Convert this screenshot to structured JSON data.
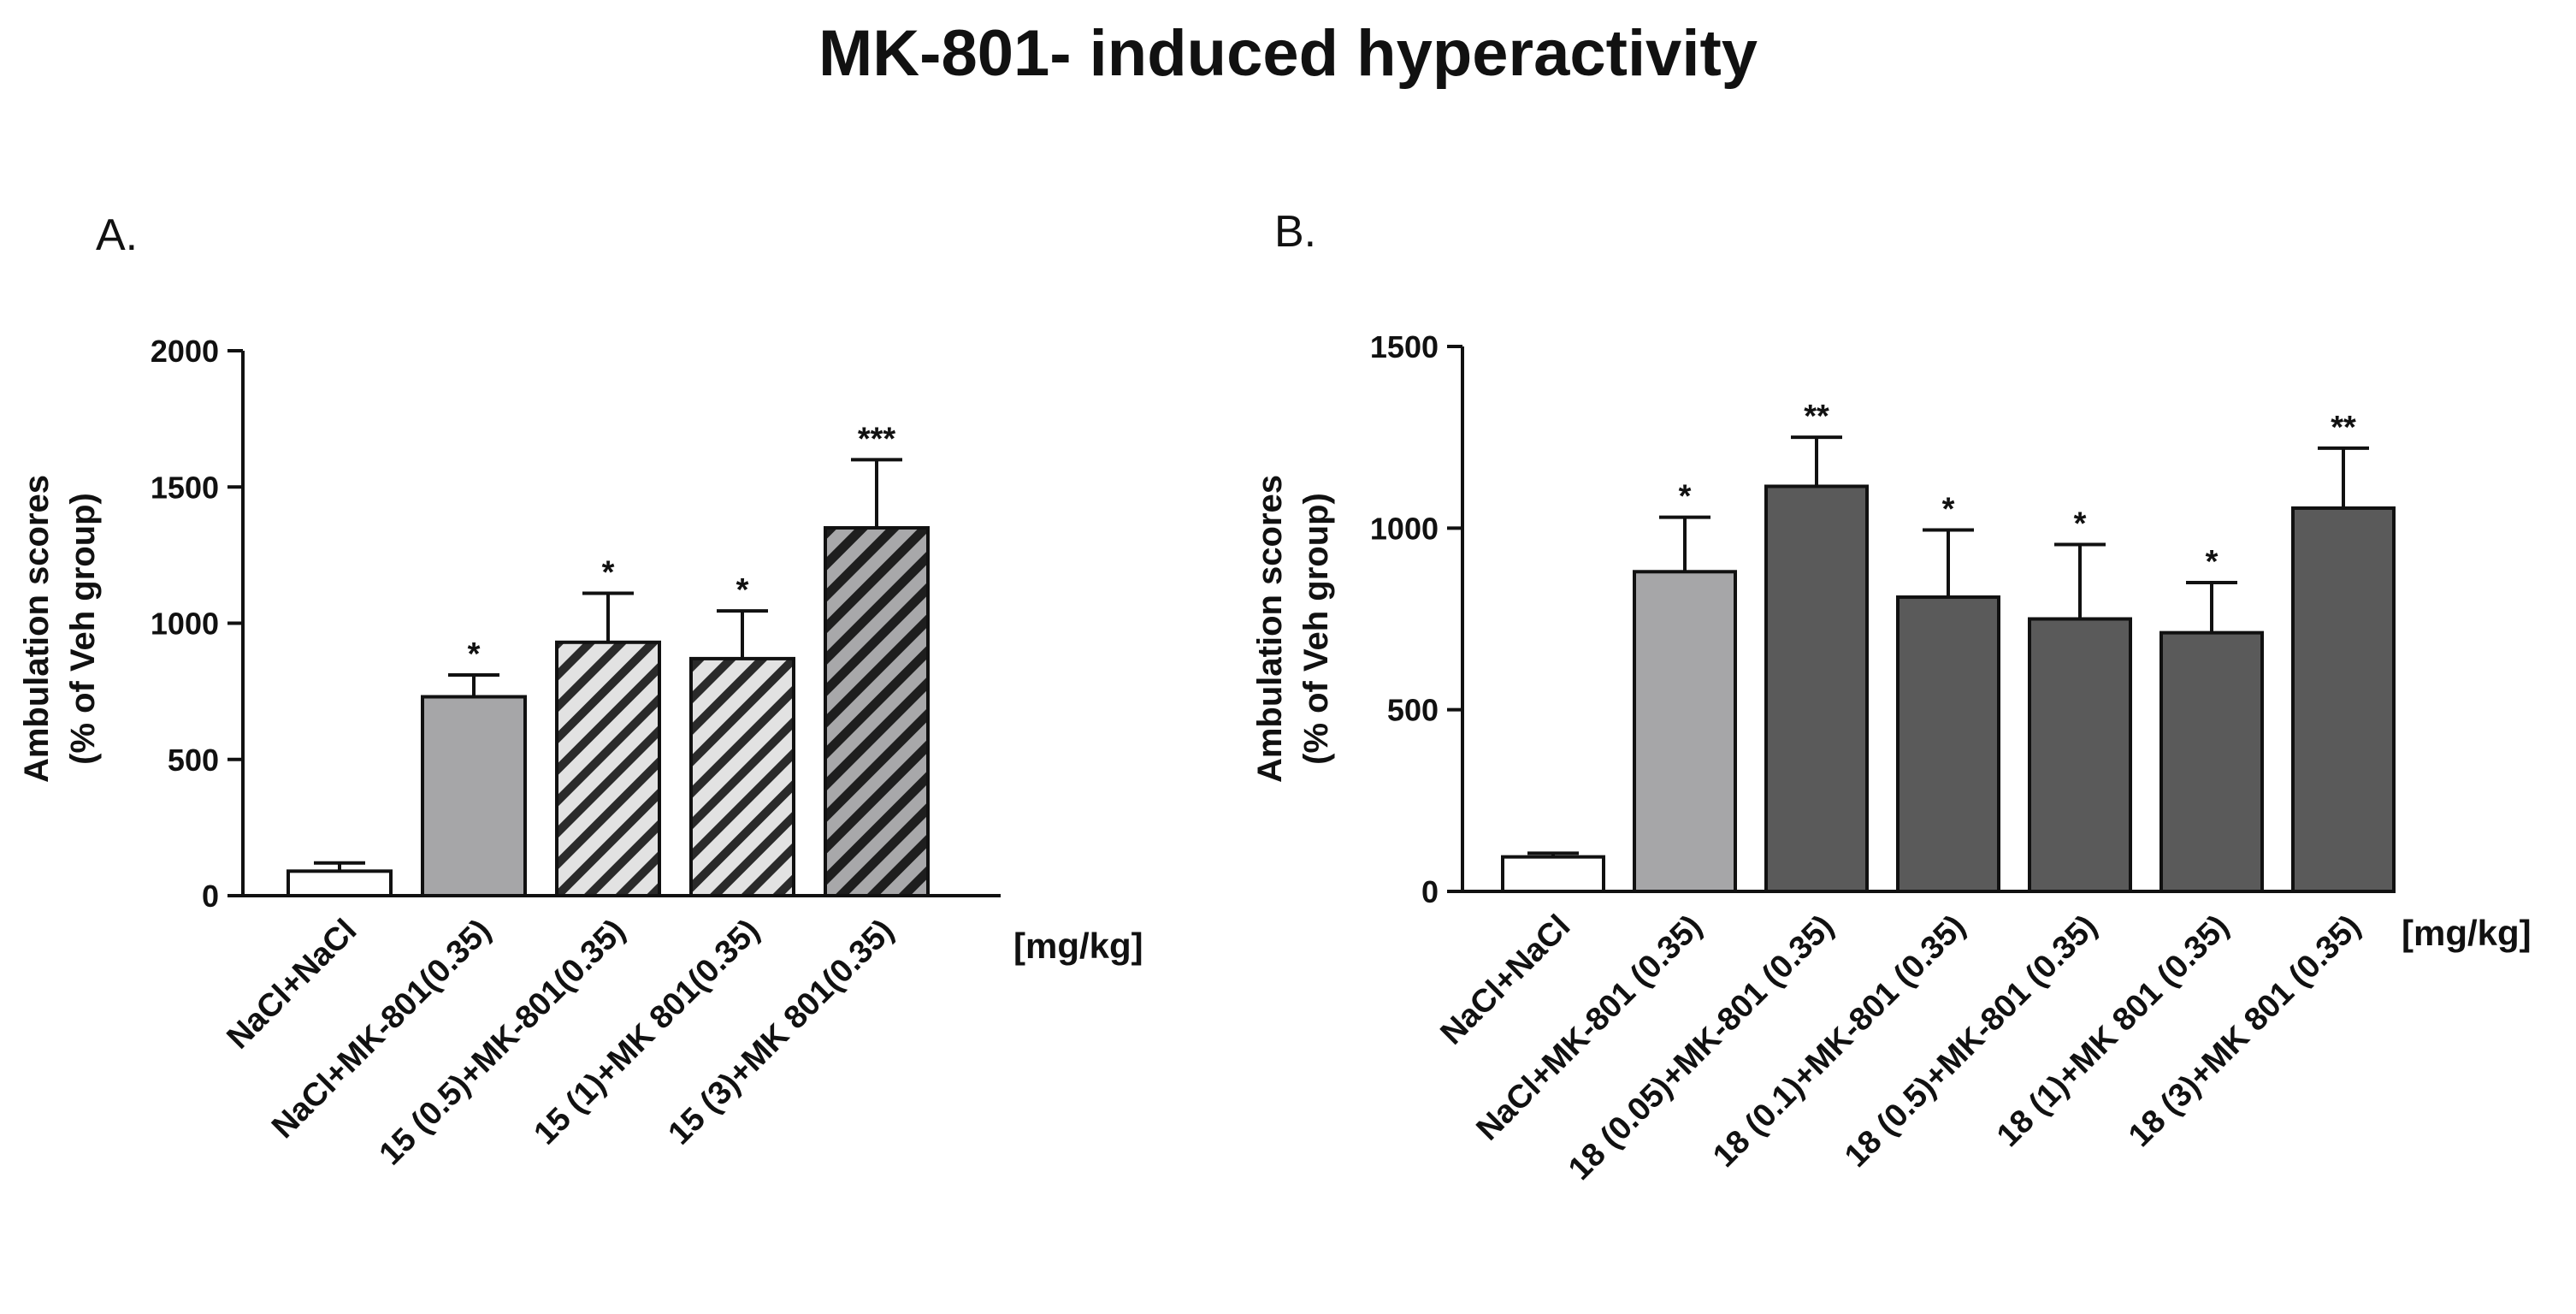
{
  "figure_title": "MK-801- induced hyperactivity",
  "unit_label": "[mg/kg]",
  "colors": {
    "white_bar": "#ffffff",
    "light_grey_bar": "#a6a6a8",
    "dark_grey_bar": "#5a5a5a",
    "hatch_light_bg": "#e2e2e2",
    "hatch_dark_bg": "#a8a8aa",
    "ink": "#111111"
  },
  "chart_data": [
    {
      "panel": "A.",
      "type": "bar",
      "ylabel_line1": "Ambulation scores",
      "ylabel_line2": "(% of Veh group)",
      "ylim": [
        0,
        2000
      ],
      "yticks": [
        0,
        500,
        1000,
        1500,
        2000
      ],
      "categories": [
        "NaCl+NaCl",
        "NaCl+MK-801(0.35)",
        "15 (0.5)+MK-801(0.35)",
        "15 (1)+MK 801(0.35)",
        "15 (3)+MK 801(0.35)"
      ],
      "values": [
        90,
        730,
        930,
        870,
        1350
      ],
      "errors": [
        30,
        80,
        180,
        175,
        250
      ],
      "significance": [
        "",
        "*",
        "*",
        "*",
        "***"
      ],
      "fills": [
        "white",
        "light-grey",
        "hatch-light",
        "hatch-light",
        "hatch-dark"
      ]
    },
    {
      "panel": "B.",
      "type": "bar",
      "ylabel_line1": "Ambulation scores",
      "ylabel_line2": "(% of Veh group)",
      "ylim": [
        0,
        1500
      ],
      "yticks": [
        0,
        500,
        1000,
        1500
      ],
      "categories": [
        "NaCl+NaCl",
        "NaCl+MK-801 (0.35)",
        "18 (0.05)+MK-801 (0.35)",
        "18 (0.1)+MK-801 (0.35)",
        "18 (0.5)+MK-801 (0.35)",
        "18 (1)+MK 801 (0.35)",
        "18 (3)+MK 801 (0.35)"
      ],
      "values": [
        95,
        880,
        1115,
        810,
        750,
        712,
        1055
      ],
      "errors": [
        10,
        150,
        135,
        185,
        205,
        138,
        165
      ],
      "significance": [
        "",
        "*",
        "**",
        "*",
        "*",
        "*",
        "**"
      ],
      "fills": [
        "white",
        "light-grey",
        "dark-grey",
        "dark-grey",
        "dark-grey",
        "dark-grey",
        "dark-grey"
      ]
    }
  ]
}
